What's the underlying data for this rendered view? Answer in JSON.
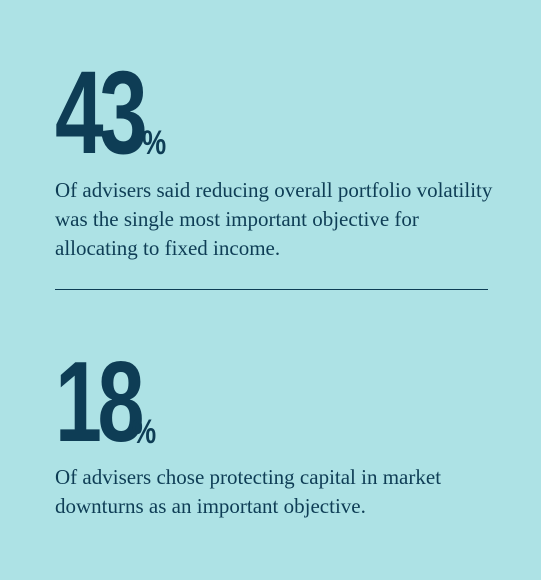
{
  "stats": [
    {
      "number": "43",
      "unit": "%",
      "text": "Of advisers said reducing overall portfolio volatility was the single most important objective for allocating to fixed income."
    },
    {
      "number": "18",
      "unit": "%",
      "text": "Of advisers chose protecting capital in market downturns as an important objective."
    }
  ],
  "colors": {
    "background": "#ade2e5",
    "text": "#0e3d55"
  }
}
